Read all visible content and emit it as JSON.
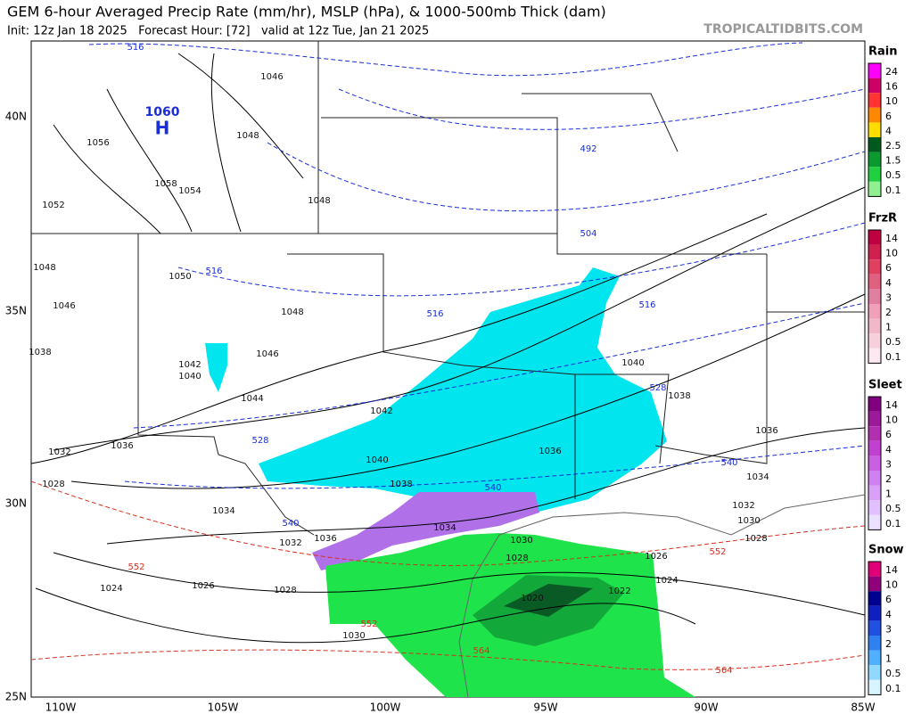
{
  "header": {
    "title": "GEM 6-hour Averaged Precip Rate (mm/hr), MSLP (hPa), & 1000-500mb Thick (dam)",
    "subtitle": "Init: 12z Jan 18 2025   Forecast Hour: [72]   valid at 12z Tue, Jan 21 2025",
    "site": "TROPICALTIDBITS.COM"
  },
  "map": {
    "lat_labels": [
      "40N",
      "35N",
      "30N",
      "25N"
    ],
    "lon_labels": [
      "110W",
      "105W",
      "100W",
      "95W",
      "90W",
      "85W"
    ],
    "high": {
      "value": "1060",
      "label": "H"
    },
    "isobar_labels": [
      "1046",
      "1048",
      "1056",
      "1058",
      "1054",
      "1052",
      "1048",
      "1048",
      "1050",
      "1046",
      "1048",
      "1038",
      "1046",
      "1042",
      "1040",
      "1044",
      "1042",
      "1040",
      "1038",
      "1036",
      "1032",
      "1040",
      "1036",
      "1036",
      "1038",
      "1034",
      "1028",
      "1032",
      "1030",
      "1034",
      "1036",
      "1034",
      "1032",
      "1030",
      "1028",
      "1028",
      "1026",
      "1024",
      "1022",
      "1020",
      "1024",
      "1026",
      "1028",
      "1030"
    ],
    "thickness_labels": [
      "516",
      "492",
      "504",
      "516",
      "516",
      "516",
      "528",
      "528",
      "540",
      "540",
      "540",
      "552",
      "552",
      "552",
      "564",
      "564"
    ]
  },
  "legend": [
    {
      "title": "Rain",
      "labels": [
        "24",
        "16",
        "10",
        "6",
        "4",
        "2.5",
        "1.5",
        "0.5",
        "0.1"
      ]
    },
    {
      "title": "FrzR",
      "labels": [
        "14",
        "10",
        "6",
        "4",
        "3",
        "2",
        "1",
        "0.5",
        "0.1"
      ]
    },
    {
      "title": "Sleet",
      "labels": [
        "14",
        "10",
        "6",
        "4",
        "3",
        "2",
        "1",
        "0.5",
        "0.1"
      ]
    },
    {
      "title": "Snow",
      "labels": [
        "14",
        "10",
        "6",
        "4",
        "3",
        "2",
        "1",
        "0.5",
        "0.1"
      ]
    }
  ]
}
